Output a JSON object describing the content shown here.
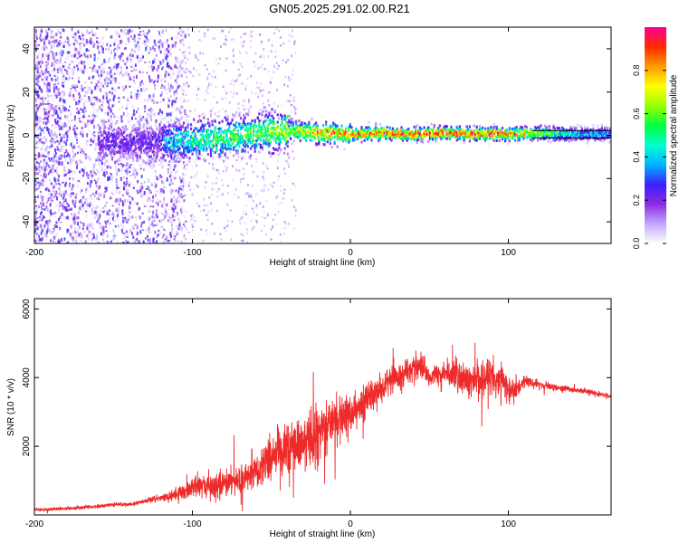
{
  "title": "GN05.2025.291.02.00.R21",
  "colorbar": {
    "label": "Normalized spectral amplitude",
    "ticks": [
      "0.0",
      "0.2",
      "0.4",
      "0.6",
      "0.8"
    ],
    "tick_values": [
      0.0,
      0.2,
      0.4,
      0.6,
      0.8
    ],
    "range": [
      0,
      1
    ],
    "colors": [
      "#ffffff",
      "#c4a6ff",
      "#8a2be2",
      "#3a1fff",
      "#00b4ff",
      "#00ffd0",
      "#00ff40",
      "#9aff00",
      "#ffff00",
      "#ff9a00",
      "#ff2a00",
      "#ff0090"
    ]
  },
  "chart_data": [
    {
      "type": "heatmap",
      "title": "GN05.2025.291.02.00.R21",
      "xlabel": "Height of straight line (km)",
      "ylabel": "Frequency (Hz)",
      "xlim": [
        -200,
        165
      ],
      "ylim": [
        -50,
        50
      ],
      "xticks": [
        -200,
        -100,
        0,
        100
      ],
      "xtick_labels": [
        "-200",
        "-100",
        "0",
        "100"
      ],
      "yticks": [
        -40,
        -20,
        0,
        20,
        40
      ],
      "ytick_labels": [
        "-40",
        "-20",
        "0",
        "20",
        "40"
      ],
      "description_of_ridge": {
        "x": [
          -120,
          -100,
          -80,
          -60,
          -40,
          -20,
          0,
          20,
          40,
          60,
          80,
          100,
          120,
          140,
          165
        ],
        "center_freq": [
          -3,
          -2,
          -1,
          1,
          2,
          1,
          0.5,
          1,
          0.5,
          1,
          0.5,
          0.5,
          1,
          0.5,
          0.5
        ],
        "peak_amplitude": [
          0.4,
          0.55,
          0.6,
          0.65,
          0.7,
          0.85,
          0.9,
          0.95,
          0.95,
          0.95,
          0.95,
          0.9,
          0.7,
          0.45,
          0.4
        ]
      }
    },
    {
      "type": "line",
      "xlabel": "Height of straight line (km)",
      "ylabel": "SNR (10 * v/v)",
      "xlim": [
        -200,
        165
      ],
      "ylim": [
        0,
        6300
      ],
      "xticks": [
        -200,
        -100,
        0,
        100
      ],
      "xtick_labels": [
        "-200",
        "-100",
        "0",
        "100"
      ],
      "yticks": [
        2000,
        4000,
        6000
      ],
      "ytick_labels": [
        "2000",
        "4000",
        "6000"
      ],
      "color": "#ee2a2a",
      "series": [
        {
          "name": "SNR",
          "x": [
            -200,
            -180,
            -160,
            -150,
            -140,
            -130,
            -120,
            -110,
            -100,
            -90,
            -80,
            -70,
            -60,
            -50,
            -40,
            -30,
            -20,
            -10,
            0,
            10,
            20,
            30,
            40,
            45,
            50,
            55,
            60,
            70,
            80,
            90,
            100,
            105,
            110,
            120,
            130,
            140,
            150,
            165
          ],
          "y": [
            150,
            180,
            250,
            300,
            300,
            400,
            500,
            600,
            800,
            900,
            900,
            1000,
            1300,
            1700,
            1900,
            2100,
            2400,
            2700,
            3000,
            3300,
            3700,
            4000,
            4300,
            4400,
            4000,
            4100,
            4100,
            4000,
            3900,
            4000,
            3800,
            3600,
            3900,
            3800,
            3700,
            3650,
            3600,
            3450
          ],
          "noise_amplitude": [
            60,
            60,
            70,
            80,
            80,
            100,
            150,
            250,
            400,
            450,
            500,
            550,
            650,
            800,
            900,
            1000,
            1000,
            900,
            700,
            600,
            500,
            500,
            500,
            700,
            300,
            350,
            500,
            600,
            700,
            800,
            700,
            400,
            200,
            150,
            120,
            100,
            100,
            100
          ]
        }
      ]
    }
  ]
}
